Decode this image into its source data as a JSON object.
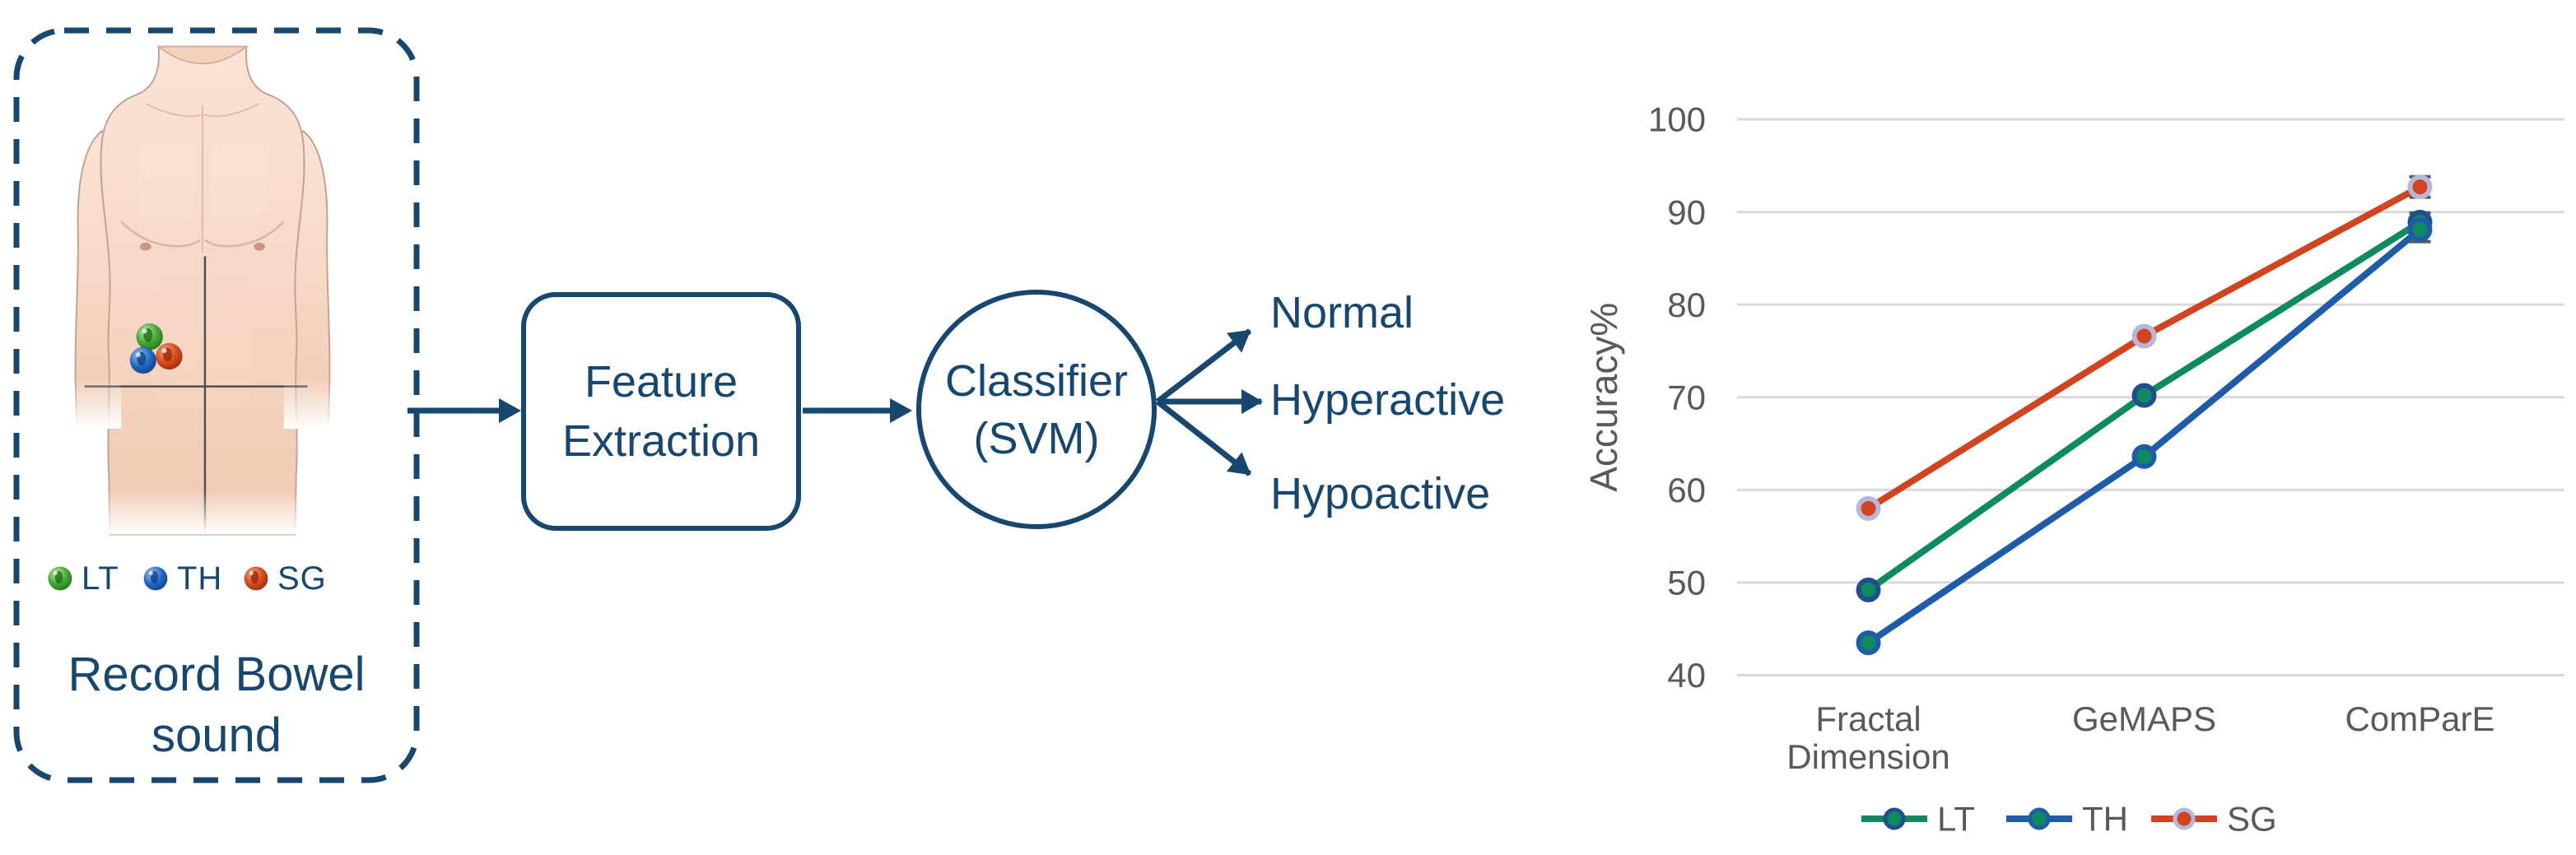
{
  "figure": {
    "accent_navy": "#17466E",
    "record_box": {
      "label_line1": "Record Bowel",
      "label_line2": "sound",
      "sensors": [
        {
          "label": "LT",
          "color": "#3FA335"
        },
        {
          "label": "TH",
          "color": "#1E63C0"
        },
        {
          "label": "SG",
          "color": "#D8481C"
        }
      ]
    },
    "feature_box": {
      "line1": "Feature",
      "line2": "Extraction"
    },
    "classifier": {
      "line1": "Classifier",
      "line2": "(SVM)"
    },
    "outputs": [
      "Normal",
      "Hyperactive",
      "Hypoactive"
    ]
  },
  "chart_data": {
    "type": "line",
    "title": "",
    "xlabel": "",
    "ylabel": "Accuracy%",
    "categories": [
      "Fractal Dimension",
      "GeMAPS",
      "ComParE"
    ],
    "series": [
      {
        "name": "LT",
        "color": "#0E8A5F",
        "marker_fill": "#0E8A5F",
        "marker_border": "#1F4E8F",
        "values": [
          49.2,
          70.2,
          88.9
        ],
        "error": [
          0,
          0,
          1.0
        ]
      },
      {
        "name": "TH",
        "color": "#1E5CA8",
        "marker_fill": "#0E8A5F",
        "marker_border": "#1E5CA8",
        "values": [
          43.5,
          63.6,
          88.1
        ],
        "error": [
          0,
          0,
          1.3
        ]
      },
      {
        "name": "SG",
        "color": "#D2441F",
        "marker_fill": "#D2441F",
        "marker_border": "#B5B8DA",
        "values": [
          58.0,
          76.6,
          92.7
        ],
        "error": [
          0,
          0,
          1.1
        ]
      }
    ],
    "ylim": [
      40,
      100
    ],
    "ytick_step": 10,
    "grid": true,
    "legend_position": "bottom",
    "axis_text_color": "#595959",
    "gridline_color": "#D9D9D9"
  }
}
